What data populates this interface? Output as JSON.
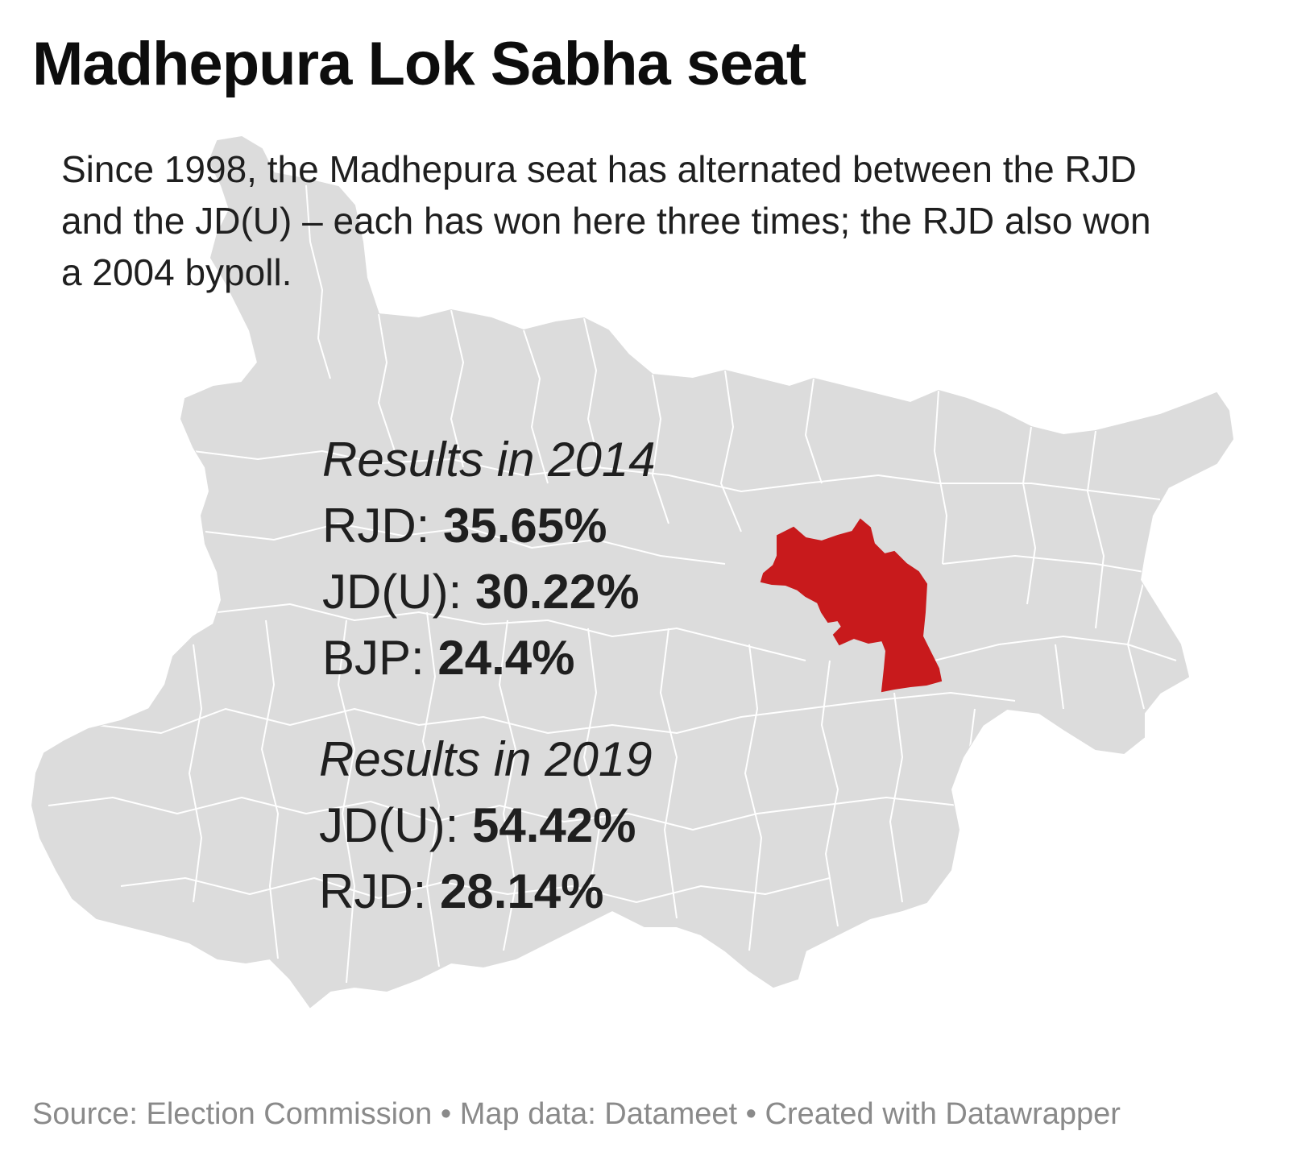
{
  "title": "Madhepura Lok Sabha seat",
  "description": "Since 1998, the Madhepura seat has alternated between the RJD and the JD(U) – each has won here three times; the RJD also won a 2004 bypoll.",
  "results": [
    {
      "heading": "Results in 2014",
      "rows": [
        {
          "party": "RJD",
          "value": "35.65%"
        },
        {
          "party": "JD(U)",
          "value": "30.22%"
        },
        {
          "party": "BJP",
          "value": "24.4%"
        }
      ]
    },
    {
      "heading": "Results in 2019",
      "rows": [
        {
          "party": "JD(U)",
          "value": "54.42%"
        },
        {
          "party": "RJD",
          "value": "28.14%"
        }
      ]
    }
  ],
  "footer": {
    "source": "Source: Election Commission",
    "map_data": "Map data: Datameet",
    "created_with": "Created with Datawrapper",
    "separator": "•"
  },
  "map": {
    "highlighted_region": "Madhepura",
    "highlight_color": "#c81a1c",
    "base_color": "#dcdcdc",
    "border_color": "#ffffff"
  }
}
